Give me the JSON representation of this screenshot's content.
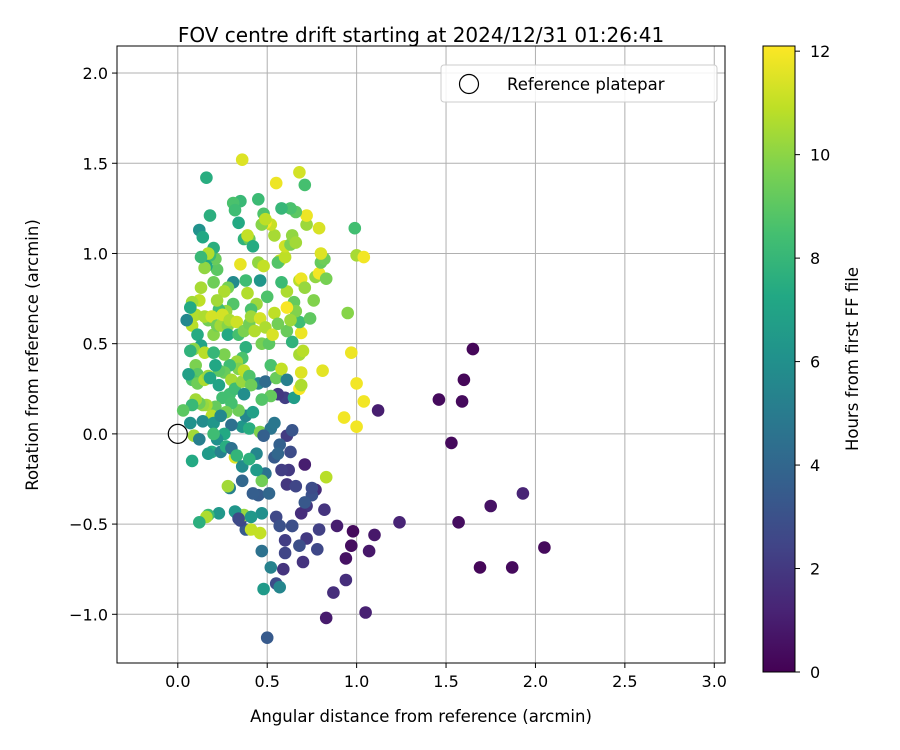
{
  "chart_data": {
    "type": "scatter",
    "title": "FOV centre drift starting at 2024/12/31 01:26:41",
    "xlabel": "Angular distance from reference (arcmin)",
    "ylabel": "Rotation from reference (arcmin)",
    "xlim": [
      -0.34,
      3.06
    ],
    "ylim": [
      -1.27,
      2.15
    ],
    "xticks": [
      0.0,
      0.5,
      1.0,
      1.5,
      2.0,
      2.5,
      3.0
    ],
    "xtick_labels": [
      "0.0",
      "0.5",
      "1.0",
      "1.5",
      "2.0",
      "2.5",
      "3.0"
    ],
    "yticks": [
      -1.0,
      -0.5,
      0.0,
      0.5,
      1.0,
      1.5,
      2.0
    ],
    "ytick_labels": [
      "−1.0",
      "−0.5",
      "0.0",
      "0.5",
      "1.0",
      "1.5",
      "2.0"
    ],
    "grid": true,
    "colormap": "viridis",
    "colorbar": {
      "label": "Hours from first FF file",
      "range": [
        0,
        12.1
      ],
      "ticks": [
        0,
        2,
        4,
        6,
        8,
        10,
        12
      ],
      "tick_labels": [
        "0",
        "2",
        "4",
        "6",
        "8",
        "10",
        "12"
      ]
    },
    "legend": {
      "position": "upper-right",
      "entries": [
        "Reference platepar"
      ]
    },
    "reference": {
      "label": "Reference platepar",
      "x": 0.0,
      "y": 0.0
    },
    "points": [
      [
        1.65,
        0.47,
        0.2
      ],
      [
        1.6,
        0.3,
        0.2
      ],
      [
        1.59,
        0.18,
        0.3
      ],
      [
        1.46,
        0.19,
        0.3
      ],
      [
        1.53,
        -0.05,
        0.3
      ],
      [
        1.12,
        0.13,
        1.0
      ],
      [
        1.24,
        -0.49,
        1.2
      ],
      [
        1.57,
        -0.49,
        0.4
      ],
      [
        1.75,
        -0.4,
        0.6
      ],
      [
        1.93,
        -0.33,
        1.2
      ],
      [
        2.05,
        -0.63,
        0.3
      ],
      [
        1.69,
        -0.74,
        0.2
      ],
      [
        1.87,
        -0.74,
        0.3
      ],
      [
        1.1,
        -0.56,
        0.8
      ],
      [
        1.07,
        -0.65,
        0.8
      ],
      [
        0.98,
        -0.54,
        0.3
      ],
      [
        0.97,
        -0.62,
        0.4
      ],
      [
        0.94,
        -0.69,
        0.6
      ],
      [
        0.89,
        -0.51,
        1.0
      ],
      [
        0.94,
        -0.81,
        1.6
      ],
      [
        1.05,
        -0.99,
        1.1
      ],
      [
        0.87,
        -0.88,
        1.6
      ],
      [
        0.83,
        -1.02,
        0.9
      ],
      [
        0.82,
        -0.42,
        1.8
      ],
      [
        0.77,
        -0.31,
        1.5
      ],
      [
        0.79,
        -0.53,
        2.3
      ],
      [
        0.78,
        -0.64,
        2.6
      ],
      [
        0.72,
        -0.58,
        2.0
      ],
      [
        0.72,
        -0.4,
        1.9
      ],
      [
        0.71,
        -0.17,
        1.0
      ],
      [
        0.75,
        -0.34,
        3.0
      ],
      [
        0.69,
        -0.44,
        1.6
      ],
      [
        0.68,
        -0.62,
        2.9
      ],
      [
        0.7,
        -0.71,
        1.8
      ],
      [
        0.64,
        -0.51,
        2.7
      ],
      [
        0.6,
        -0.59,
        2.2
      ],
      [
        0.6,
        -0.66,
        2.5
      ],
      [
        0.59,
        -0.75,
        1.8
      ],
      [
        0.61,
        -0.28,
        1.9
      ],
      [
        0.62,
        -0.2,
        2.0
      ],
      [
        0.58,
        -0.2,
        2.2
      ],
      [
        0.63,
        -0.1,
        2.8
      ],
      [
        0.61,
        -0.01,
        2.1
      ],
      [
        0.64,
        0.02,
        3.2
      ],
      [
        0.6,
        0.2,
        2.2
      ],
      [
        0.56,
        0.22,
        2.0
      ],
      [
        0.57,
        -0.06,
        3.7
      ],
      [
        0.54,
        -0.13,
        3.4
      ],
      [
        0.55,
        -0.46,
        2.6
      ],
      [
        0.57,
        -0.51,
        3.0
      ],
      [
        0.55,
        -0.83,
        2.8
      ],
      [
        0.57,
        -0.85,
        5.5
      ],
      [
        0.52,
        -0.74,
        5.3
      ],
      [
        0.5,
        -1.13,
        3.4
      ],
      [
        0.48,
        -0.86,
        6.5
      ],
      [
        0.47,
        -0.65,
        4.5
      ],
      [
        0.47,
        -0.44,
        6.0
      ],
      [
        0.45,
        -0.34,
        3.5
      ],
      [
        0.51,
        -0.33,
        4.0
      ],
      [
        0.49,
        -0.22,
        4.6
      ],
      [
        0.47,
        -0.26,
        9.5
      ],
      [
        0.44,
        -0.2,
        6.6
      ],
      [
        0.44,
        -0.11,
        5.5
      ],
      [
        0.38,
        -0.53,
        3.4
      ],
      [
        0.35,
        -0.48,
        2.6
      ],
      [
        0.36,
        -0.26,
        4.0
      ],
      [
        0.33,
        -0.44,
        7.5
      ],
      [
        0.37,
        -0.45,
        10.2
      ],
      [
        0.41,
        -0.53,
        11.0
      ],
      [
        0.29,
        -0.3,
        5.2
      ],
      [
        0.28,
        -0.29,
        10.4
      ],
      [
        0.32,
        -0.13,
        11.5
      ],
      [
        0.36,
        0.04,
        6.3
      ],
      [
        0.38,
        0.1,
        5.6
      ],
      [
        0.4,
        0.03,
        7.5
      ],
      [
        0.42,
        0.12,
        6.8
      ],
      [
        0.46,
        0.01,
        9.8
      ],
      [
        0.52,
        0.03,
        4.7
      ],
      [
        0.54,
        0.06,
        4.8
      ],
      [
        0.52,
        0.21,
        9.2
      ],
      [
        0.47,
        0.19,
        8.8
      ],
      [
        0.45,
        0.28,
        5.5
      ],
      [
        0.49,
        0.29,
        4.2
      ],
      [
        0.52,
        0.38,
        8.6
      ],
      [
        0.55,
        0.31,
        9.3
      ],
      [
        0.58,
        0.36,
        11.0
      ],
      [
        0.61,
        0.3,
        5.2
      ],
      [
        0.65,
        0.2,
        6.7
      ],
      [
        0.68,
        0.25,
        12.0
      ],
      [
        0.69,
        0.34,
        11.5
      ],
      [
        0.68,
        0.44,
        10.5
      ],
      [
        0.7,
        0.46,
        10.8
      ],
      [
        0.69,
        0.56,
        11.8
      ],
      [
        0.68,
        0.62,
        8.3
      ],
      [
        0.65,
        0.73,
        9.2
      ],
      [
        0.66,
        0.68,
        9.8
      ],
      [
        0.64,
        0.51,
        7.8
      ],
      [
        0.61,
        0.57,
        9.3
      ],
      [
        0.63,
        0.63,
        10.3
      ],
      [
        0.61,
        0.7,
        12.0
      ],
      [
        0.61,
        0.79,
        10.6
      ],
      [
        0.58,
        0.84,
        8.2
      ],
      [
        0.57,
        0.96,
        11.0
      ],
      [
        0.56,
        0.95,
        8.8
      ],
      [
        0.6,
        0.98,
        10.9
      ],
      [
        0.6,
        1.04,
        11.2
      ],
      [
        0.63,
        1.05,
        9.7
      ],
      [
        0.64,
        1.1,
        10.1
      ],
      [
        0.66,
        1.06,
        10.4
      ],
      [
        0.68,
        0.85,
        10.8
      ],
      [
        0.69,
        0.86,
        11.8
      ],
      [
        0.71,
        0.81,
        10.2
      ],
      [
        0.74,
        0.64,
        9.1
      ],
      [
        0.76,
        0.74,
        9.8
      ],
      [
        0.77,
        0.87,
        10.1
      ],
      [
        0.79,
        0.89,
        11.9
      ],
      [
        0.8,
        0.95,
        9.2
      ],
      [
        0.82,
        0.97,
        9.4
      ],
      [
        0.8,
        1.0,
        11.5
      ],
      [
        0.83,
        0.86,
        9.6
      ],
      [
        0.79,
        1.14,
        11.4
      ],
      [
        0.72,
        1.16,
        10.3
      ],
      [
        0.72,
        1.21,
        11.8
      ],
      [
        0.66,
        1.23,
        9.0
      ],
      [
        0.63,
        1.25,
        8.6
      ],
      [
        0.58,
        1.25,
        8.0
      ],
      [
        0.54,
        1.1,
        10.5
      ],
      [
        0.52,
        1.16,
        11.1
      ],
      [
        0.49,
        1.17,
        11.9
      ],
      [
        0.47,
        1.16,
        9.9
      ],
      [
        0.48,
        1.22,
        8.7
      ],
      [
        0.49,
        1.19,
        10.9
      ],
      [
        0.45,
        1.3,
        8.2
      ],
      [
        0.35,
        1.29,
        8.1
      ],
      [
        0.31,
        1.28,
        8.6
      ],
      [
        0.34,
        1.17,
        7.3
      ],
      [
        0.32,
        1.24,
        8.3
      ],
      [
        0.37,
        1.08,
        7.8
      ],
      [
        0.4,
        1.08,
        9.3
      ],
      [
        0.39,
        1.1,
        11.0
      ],
      [
        0.42,
        1.04,
        7.4
      ],
      [
        0.45,
        0.95,
        10.1
      ],
      [
        0.48,
        0.93,
        11.0
      ],
      [
        0.46,
        0.85,
        6.3
      ],
      [
        0.5,
        0.76,
        8.7
      ],
      [
        0.44,
        0.72,
        10.3
      ],
      [
        0.41,
        0.69,
        8.6
      ],
      [
        0.39,
        0.78,
        10.7
      ],
      [
        0.38,
        0.85,
        8.3
      ],
      [
        0.35,
        0.94,
        11.7
      ],
      [
        0.31,
        0.84,
        5.7
      ],
      [
        0.31,
        0.72,
        8.8
      ],
      [
        0.28,
        0.81,
        9.6
      ],
      [
        0.26,
        0.79,
        10.6
      ],
      [
        0.27,
        0.68,
        10.2
      ],
      [
        0.23,
        0.69,
        8.4
      ],
      [
        0.22,
        0.74,
        10.4
      ],
      [
        0.2,
        0.84,
        9.4
      ],
      [
        0.22,
        0.91,
        9.0
      ],
      [
        0.21,
        0.97,
        9.3
      ],
      [
        0.2,
        1.03,
        7.6
      ],
      [
        0.18,
        0.99,
        8.2
      ],
      [
        0.17,
        1.0,
        10.7
      ],
      [
        0.16,
        0.93,
        7.2
      ],
      [
        0.15,
        0.92,
        10.1
      ],
      [
        0.13,
        0.98,
        8.1
      ],
      [
        0.12,
        1.13,
        6.1
      ],
      [
        0.14,
        1.09,
        7.2
      ],
      [
        0.18,
        1.21,
        7.6
      ],
      [
        0.16,
        1.42,
        7.5
      ],
      [
        0.36,
        1.52,
        11.5
      ],
      [
        0.55,
        1.39,
        11.8
      ],
      [
        0.68,
        1.45,
        11.3
      ],
      [
        0.71,
        1.38,
        8.5
      ],
      [
        0.99,
        1.14,
        8.4
      ],
      [
        1.0,
        0.99,
        10.5
      ],
      [
        1.04,
        0.98,
        11.9
      ],
      [
        0.95,
        0.67,
        9.9
      ],
      [
        0.97,
        0.45,
        11.8
      ],
      [
        1.0,
        0.28,
        11.9
      ],
      [
        1.04,
        0.18,
        11.9
      ],
      [
        0.93,
        0.09,
        11.9
      ],
      [
        1.0,
        0.04,
        11.9
      ],
      [
        0.81,
        0.35,
        11.6
      ],
      [
        0.69,
        0.27,
        10.6
      ],
      [
        0.13,
        0.81,
        10.5
      ],
      [
        0.12,
        0.74,
        10.9
      ],
      [
        0.08,
        0.73,
        10.4
      ],
      [
        0.1,
        0.66,
        10.7
      ],
      [
        0.08,
        0.6,
        10.8
      ],
      [
        0.05,
        0.63,
        5.6
      ],
      [
        0.07,
        0.7,
        7.3
      ],
      [
        0.11,
        0.55,
        7.4
      ],
      [
        0.13,
        0.49,
        7.0
      ],
      [
        0.09,
        0.47,
        10.0
      ],
      [
        0.07,
        0.46,
        7.8
      ],
      [
        0.1,
        0.38,
        9.7
      ],
      [
        0.11,
        0.33,
        9.0
      ],
      [
        0.08,
        0.3,
        8.7
      ],
      [
        0.06,
        0.33,
        6.8
      ],
      [
        0.11,
        0.28,
        9.4
      ],
      [
        0.15,
        0.3,
        10.6
      ],
      [
        0.17,
        0.32,
        10.2
      ],
      [
        0.15,
        0.45,
        10.8
      ],
      [
        0.2,
        0.55,
        9.9
      ],
      [
        0.17,
        0.63,
        9.5
      ],
      [
        0.15,
        0.65,
        10.6
      ],
      [
        0.19,
        0.65,
        11.3
      ],
      [
        0.22,
        0.6,
        9.5
      ],
      [
        0.24,
        0.6,
        10.4
      ],
      [
        0.25,
        0.66,
        11.3
      ],
      [
        0.28,
        0.6,
        9.9
      ],
      [
        0.28,
        0.55,
        7.3
      ],
      [
        0.29,
        0.63,
        10.6
      ],
      [
        0.33,
        0.62,
        11.2
      ],
      [
        0.34,
        0.55,
        8.5
      ],
      [
        0.37,
        0.57,
        9.7
      ],
      [
        0.4,
        0.61,
        9.5
      ],
      [
        0.41,
        0.65,
        10.3
      ],
      [
        0.43,
        0.57,
        10.7
      ],
      [
        0.46,
        0.64,
        11.3
      ],
      [
        0.49,
        0.59,
        10.6
      ],
      [
        0.47,
        0.5,
        9.6
      ],
      [
        0.51,
        0.5,
        9.0
      ],
      [
        0.53,
        0.55,
        11.4
      ],
      [
        0.54,
        0.67,
        10.9
      ],
      [
        0.56,
        0.61,
        9.5
      ],
      [
        0.38,
        0.48,
        7.7
      ],
      [
        0.36,
        0.42,
        8.6
      ],
      [
        0.33,
        0.4,
        10.3
      ],
      [
        0.34,
        0.36,
        9.8
      ],
      [
        0.29,
        0.38,
        8.3
      ],
      [
        0.26,
        0.34,
        9.3
      ],
      [
        0.23,
        0.35,
        9.0
      ],
      [
        0.21,
        0.38,
        7.2
      ],
      [
        0.26,
        0.44,
        9.7
      ],
      [
        0.2,
        0.45,
        8.0
      ],
      [
        0.18,
        0.31,
        7.1
      ],
      [
        0.23,
        0.27,
        7.0
      ],
      [
        0.25,
        0.2,
        8.4
      ],
      [
        0.29,
        0.22,
        8.4
      ],
      [
        0.3,
        0.3,
        10.5
      ],
      [
        0.32,
        0.25,
        8.3
      ],
      [
        0.36,
        0.29,
        10.2
      ],
      [
        0.37,
        0.35,
        10.9
      ],
      [
        0.4,
        0.32,
        8.7
      ],
      [
        0.41,
        0.27,
        9.4
      ],
      [
        0.37,
        0.22,
        5.9
      ],
      [
        0.34,
        0.13,
        9.4
      ],
      [
        0.3,
        0.17,
        8.5
      ],
      [
        0.27,
        0.12,
        9.6
      ],
      [
        0.24,
        0.1,
        10.7
      ],
      [
        0.21,
        0.15,
        9.2
      ],
      [
        0.19,
        0.1,
        10.8
      ],
      [
        0.16,
        0.16,
        10.5
      ],
      [
        0.14,
        0.16,
        10.2
      ],
      [
        0.12,
        0.17,
        9.4
      ],
      [
        0.1,
        0.19,
        10.4
      ],
      [
        0.08,
        0.16,
        8.1
      ],
      [
        0.03,
        0.13,
        9.0
      ],
      [
        0.07,
        0.06,
        6.1
      ],
      [
        0.14,
        0.07,
        5.8
      ],
      [
        0.2,
        0.06,
        6.3
      ],
      [
        0.24,
        0.1,
        5.6
      ],
      [
        0.3,
        0.05,
        4.5
      ],
      [
        0.26,
        0.0,
        7.3
      ],
      [
        0.22,
        -0.03,
        6.0
      ],
      [
        0.19,
        -0.1,
        7.4
      ],
      [
        0.17,
        -0.11,
        6.5
      ],
      [
        0.24,
        -0.1,
        5.3
      ],
      [
        0.27,
        -0.07,
        7.5
      ],
      [
        0.2,
        0.0,
        8.3
      ],
      [
        0.09,
        -0.01,
        10.4
      ],
      [
        0.12,
        -0.03,
        5.2
      ],
      [
        0.08,
        -0.15,
        7.3
      ],
      [
        0.3,
        -0.08,
        4.5
      ],
      [
        0.33,
        -0.12,
        7.9
      ],
      [
        0.36,
        -0.18,
        5.8
      ],
      [
        0.4,
        -0.14,
        7.7
      ],
      [
        0.42,
        -0.33,
        3.6
      ],
      [
        0.23,
        -0.44,
        6.4
      ],
      [
        0.32,
        -0.43,
        6.3
      ],
      [
        0.17,
        -0.45,
        8.2
      ],
      [
        0.16,
        -0.46,
        10.6
      ],
      [
        0.12,
        -0.49,
        7.6
      ],
      [
        0.46,
        -0.55,
        11.0
      ],
      [
        0.41,
        -0.46,
        6.4
      ],
      [
        0.34,
        -0.47,
        2.7
      ],
      [
        0.48,
        -0.01,
        3.7
      ],
      [
        0.56,
        -0.11,
        4.0
      ],
      [
        0.66,
        -0.29,
        2.5
      ],
      [
        0.71,
        -0.38,
        3.3
      ],
      [
        0.75,
        -0.3,
        2.8
      ],
      [
        0.83,
        -0.24,
        10.8
      ],
      [
        0.64,
        -0.51,
        2.9
      ]
    ]
  }
}
